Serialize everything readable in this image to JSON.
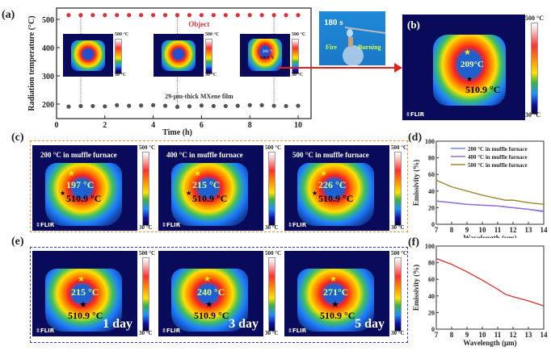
{
  "panel_labels": {
    "a": "(a)",
    "b": "(b)",
    "c": "(c)",
    "d": "(d)",
    "e": "(e)",
    "f": "(f)"
  },
  "colorbar": {
    "max": "500 °C",
    "min": "30 °C"
  },
  "flir_logo": "FLIR",
  "photo": {
    "time": "180 s",
    "left_label": "Fire",
    "right_label": "Burning"
  },
  "panel_b": {
    "center_temp": "209°C",
    "object_temp": "510.9 °C"
  },
  "panel_a_insets": [
    {
      "center_temp": "",
      "object_temp": ""
    },
    {
      "center_temp": "",
      "object_temp": ""
    },
    {
      "center_temp": "201 °C",
      "object_temp": "510.9 °C"
    }
  ],
  "panel_c": [
    {
      "title": "200 °C in muffle furnace",
      "center_temp": "197 °C",
      "object_temp": "510.9 °C"
    },
    {
      "title": "400 °C in muffle furnace",
      "center_temp": "215 °C",
      "object_temp": "510.9 °C"
    },
    {
      "title": "500 °C in muffle furnace",
      "center_temp": "226 °C",
      "object_temp": "510.9 °C"
    }
  ],
  "panel_e": [
    {
      "day": "1 day",
      "center_temp": "215 °C",
      "object_temp": "510.9 °C"
    },
    {
      "day": "3 day",
      "center_temp": "240 °C",
      "object_temp": "510.9 °C"
    },
    {
      "day": "5 day",
      "center_temp": "271°C",
      "object_temp": "510.9 °C"
    }
  ],
  "colors": {
    "object": "#d9343b",
    "film": "#555555",
    "arrow": "#e02020",
    "c_box": "#e0904a",
    "e_box": "#3a3ac0",
    "s200": "#6f8fe0",
    "s400": "#9a6ad0",
    "s500": "#a08530",
    "f_line": "#d04040"
  },
  "chart_data": [
    {
      "id": "a",
      "type": "scatter",
      "title": "",
      "xlabel": "Time (h)",
      "ylabel": "Radiation temperature (°C)",
      "xlim": [
        0,
        10.5
      ],
      "ylim": [
        150,
        540
      ],
      "xticks": [
        0,
        2,
        4,
        6,
        8,
        10
      ],
      "yticks": [
        200,
        300,
        400,
        500
      ],
      "annotations": [
        "Object",
        "29-μm-thick MXene film"
      ],
      "vlines": [
        1,
        5,
        9
      ],
      "series": [
        {
          "name": "Object",
          "x": [
            0.5,
            1,
            1.5,
            2,
            2.5,
            3,
            3.5,
            4,
            4.5,
            5,
            5.5,
            6,
            6.5,
            7,
            7.5,
            8,
            8.5,
            9,
            9.5,
            10
          ],
          "y": [
            515,
            515,
            515,
            515,
            515,
            515,
            515,
            515,
            515,
            515,
            515,
            515,
            515,
            515,
            515,
            515,
            515,
            515,
            515,
            515
          ]
        },
        {
          "name": "29-μm-thick MXene film",
          "x": [
            0.5,
            1,
            1.5,
            2,
            2.5,
            3,
            3.5,
            4,
            4.5,
            5,
            5.5,
            6,
            6.5,
            7,
            7.5,
            8,
            8.5,
            9,
            9.5,
            10
          ],
          "y": [
            191,
            193,
            193,
            192,
            196,
            194,
            195,
            196,
            194,
            190,
            192,
            195,
            193,
            193,
            194,
            196,
            196,
            194,
            193,
            194
          ]
        }
      ]
    },
    {
      "id": "d",
      "type": "line",
      "xlabel": "Wavelength (μm)",
      "ylabel": "Emissivity (%)",
      "xlim": [
        7,
        14
      ],
      "ylim": [
        0,
        100
      ],
      "xticks": [
        7,
        8,
        9,
        10,
        11,
        12,
        13,
        14
      ],
      "yticks": [
        0,
        20,
        40,
        60,
        80,
        100
      ],
      "legend": "top-right",
      "x": [
        7,
        8,
        9,
        10,
        11,
        11.5,
        12,
        13,
        14
      ],
      "series": [
        {
          "name": "200 °C in muffle furnace",
          "y": [
            28,
            26,
            24,
            23,
            22,
            21,
            20,
            18,
            15
          ]
        },
        {
          "name": "400 °C in muffle furnace",
          "y": [
            28,
            26,
            24,
            23,
            22,
            21,
            20,
            18,
            16
          ]
        },
        {
          "name": "500 °C in muffle furnace",
          "y": [
            53,
            45,
            40,
            35,
            31,
            29,
            29,
            26,
            24
          ]
        }
      ]
    },
    {
      "id": "f",
      "type": "line",
      "xlabel": "Wavelength (μm)",
      "ylabel": "Emissivity (%)",
      "xlim": [
        7,
        14
      ],
      "ylim": [
        0,
        100
      ],
      "xticks": [
        7,
        8,
        9,
        10,
        11,
        12,
        13,
        14
      ],
      "yticks": [
        0,
        20,
        40,
        60,
        80,
        100
      ],
      "x": [
        7,
        8,
        9,
        10,
        11,
        11.5,
        12,
        13,
        14
      ],
      "series": [
        {
          "name": "emissivity",
          "y": [
            85,
            78,
            69,
            59,
            48,
            42,
            39,
            34,
            28
          ]
        }
      ]
    }
  ]
}
